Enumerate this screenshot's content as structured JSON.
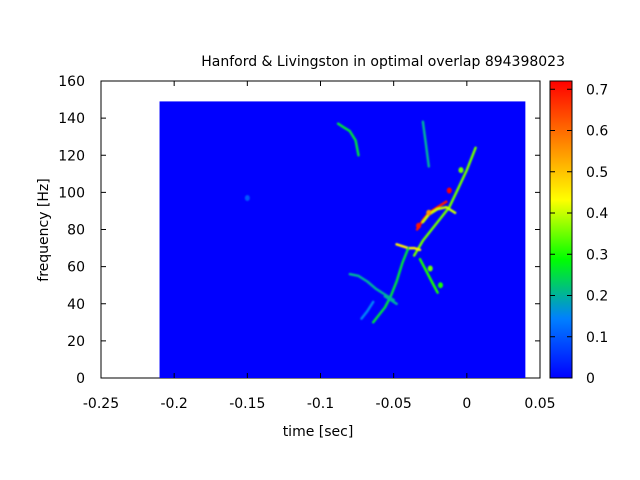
{
  "chart_data": {
    "type": "heatmap",
    "title": "Hanford & Livingston in optimal overlap 894398023",
    "xlabel": "time [sec]",
    "ylabel": "frequency [Hz]",
    "xlim": [
      -0.25,
      0.05
    ],
    "ylim": [
      0,
      160
    ],
    "xticks": [
      "-0.25",
      "-0.2",
      "-0.15",
      "-0.1",
      "-0.05",
      "0",
      "0.05"
    ],
    "yticks": [
      "0",
      "20",
      "40",
      "60",
      "80",
      "100",
      "120",
      "140",
      "160"
    ],
    "data_extent": {
      "x": [
        -0.21,
        0.04
      ],
      "y": [
        0,
        149
      ]
    },
    "background_value": 0.0,
    "colorbar": {
      "range": [
        0,
        0.72
      ],
      "ticks": [
        "0",
        "0.1",
        "0.2",
        "0.3",
        "0.4",
        "0.5",
        "0.6",
        "0.7"
      ],
      "colormap": [
        "#0000ff",
        "#0080ff",
        "#00ff00",
        "#ffff00",
        "#ff8000",
        "#ff0000"
      ]
    },
    "tracks": [
      {
        "points": [
          [
            -0.036,
            66
          ],
          [
            -0.03,
            74
          ],
          [
            -0.024,
            80
          ],
          [
            -0.018,
            86
          ],
          [
            -0.012,
            92
          ],
          [
            -0.006,
            102
          ],
          [
            0.0,
            112
          ],
          [
            0.006,
            124
          ]
        ],
        "value": 0.35
      },
      {
        "points": [
          [
            -0.034,
            80
          ],
          [
            -0.03,
            85
          ],
          [
            -0.026,
            89
          ],
          [
            -0.02,
            92
          ],
          [
            -0.014,
            95
          ]
        ],
        "value": 0.7
      },
      {
        "points": [
          [
            -0.03,
            84
          ],
          [
            -0.026,
            88
          ],
          [
            -0.02,
            91
          ],
          [
            -0.014,
            92
          ],
          [
            -0.008,
            89
          ]
        ],
        "value": 0.4
      },
      {
        "points": [
          [
            -0.048,
            72
          ],
          [
            -0.044,
            71
          ],
          [
            -0.04,
            70
          ],
          [
            -0.036,
            70
          ],
          [
            -0.032,
            69
          ]
        ],
        "value": 0.45
      },
      {
        "points": [
          [
            -0.032,
            64
          ],
          [
            -0.028,
            58
          ],
          [
            -0.024,
            52
          ],
          [
            -0.02,
            46
          ]
        ],
        "value": 0.3
      },
      {
        "points": [
          [
            -0.064,
            30
          ],
          [
            -0.06,
            34
          ],
          [
            -0.056,
            38
          ],
          [
            -0.052,
            44
          ],
          [
            -0.048,
            52
          ],
          [
            -0.044,
            62
          ],
          [
            -0.04,
            70
          ]
        ],
        "value": 0.25
      },
      {
        "points": [
          [
            -0.08,
            56
          ],
          [
            -0.074,
            55
          ],
          [
            -0.068,
            52
          ],
          [
            -0.062,
            48
          ],
          [
            -0.056,
            45
          ],
          [
            -0.05,
            42
          ]
        ],
        "value": 0.2
      },
      {
        "points": [
          [
            -0.056,
            44
          ],
          [
            -0.052,
            42
          ],
          [
            -0.048,
            40
          ]
        ],
        "value": 0.2
      },
      {
        "points": [
          [
            -0.088,
            137
          ],
          [
            -0.084,
            135
          ],
          [
            -0.08,
            133
          ],
          [
            -0.076,
            128
          ],
          [
            -0.074,
            120
          ]
        ],
        "value": 0.25
      },
      {
        "points": [
          [
            -0.03,
            138
          ],
          [
            -0.028,
            126
          ],
          [
            -0.026,
            114
          ]
        ],
        "value": 0.2
      },
      {
        "points": [
          [
            -0.072,
            32
          ],
          [
            -0.068,
            36
          ],
          [
            -0.064,
            41
          ]
        ],
        "value": 0.15
      }
    ],
    "spots": [
      {
        "x": -0.012,
        "y": 101,
        "value": 0.72
      },
      {
        "x": -0.026,
        "y": 89,
        "value": 0.55
      },
      {
        "x": -0.033,
        "y": 82,
        "value": 0.7
      },
      {
        "x": -0.025,
        "y": 59,
        "value": 0.35
      },
      {
        "x": -0.004,
        "y": 112,
        "value": 0.35
      },
      {
        "x": -0.018,
        "y": 50,
        "value": 0.3
      },
      {
        "x": -0.15,
        "y": 97,
        "value": 0.1
      }
    ]
  }
}
